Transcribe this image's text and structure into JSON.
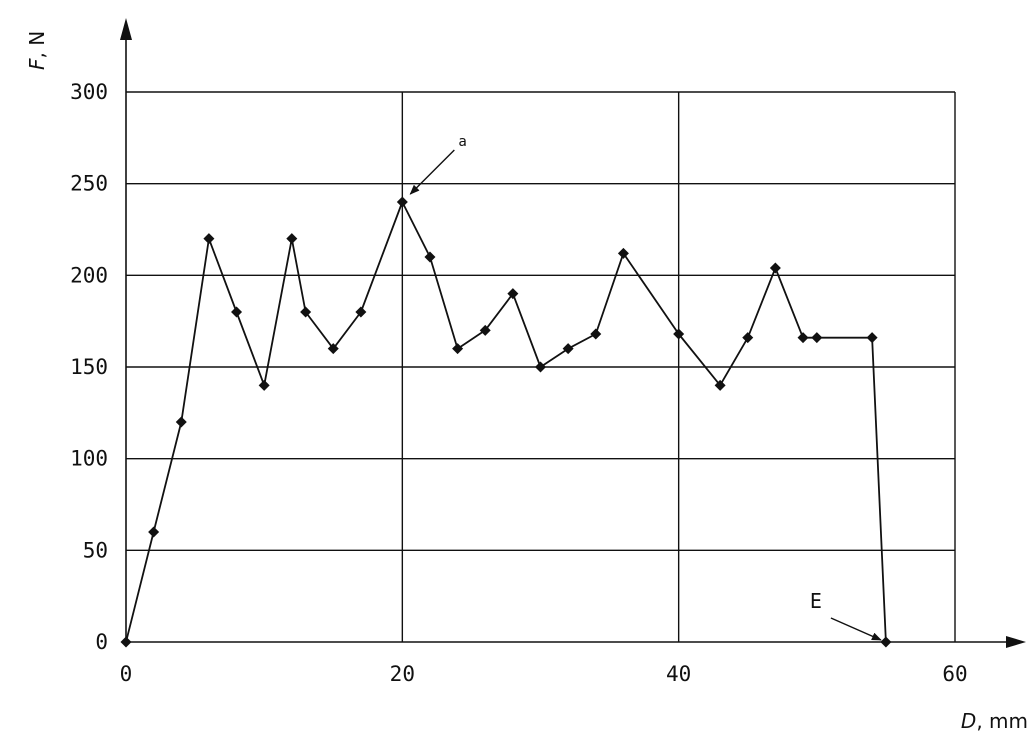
{
  "chart_data": {
    "type": "line",
    "x_axis_label": {
      "name": "D",
      "unit": "mm"
    },
    "y_axis_label": {
      "name": "F",
      "unit": "N"
    },
    "xlim": [
      0,
      60
    ],
    "ylim": [
      0,
      300
    ],
    "x_ticks": [
      0,
      20,
      40,
      60
    ],
    "y_ticks": [
      0,
      50,
      100,
      150,
      200,
      250,
      300
    ],
    "grid": true,
    "series": [
      {
        "x": [
          0,
          2,
          4,
          6,
          8,
          10,
          12,
          13,
          15,
          17,
          20,
          22,
          24,
          26,
          28,
          30,
          32,
          34,
          36,
          40,
          43,
          45,
          47,
          49,
          50,
          54,
          55
        ],
        "y": [
          0,
          60,
          120,
          220,
          180,
          140,
          220,
          180,
          160,
          180,
          240,
          210,
          160,
          170,
          190,
          150,
          160,
          168,
          212,
          168,
          140,
          166,
          204,
          166,
          166,
          166,
          0
        ]
      }
    ],
    "annotations": [
      {
        "label": "a",
        "x": 20,
        "y": 240
      },
      {
        "label": "E",
        "x": 55,
        "y": 0
      }
    ]
  }
}
